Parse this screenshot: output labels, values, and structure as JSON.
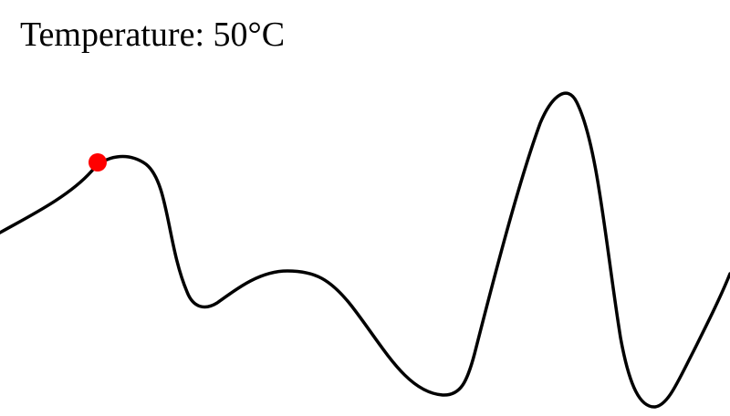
{
  "hud": {
    "temperature_label": "Temperature: 50°C"
  },
  "colors": {
    "background": "#ffffff",
    "terrain_line": "#000000",
    "ball": "#ff0000"
  },
  "icons": {
    "ball": "red-ball"
  }
}
